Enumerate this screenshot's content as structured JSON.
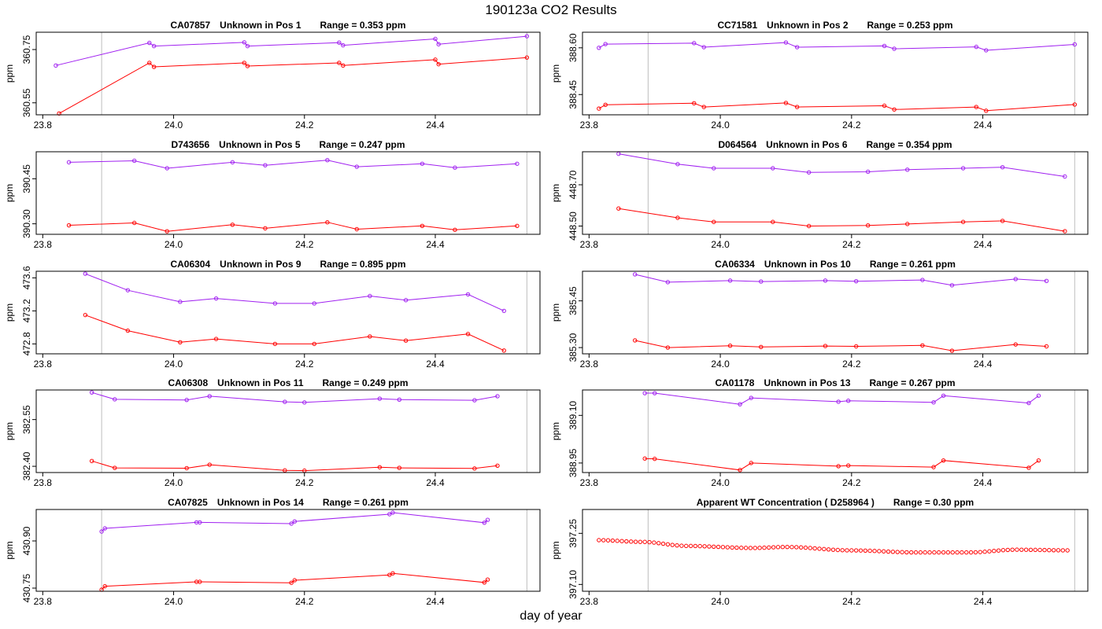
{
  "page_title": "190123a  CO2 Results",
  "xlabel": "day of year",
  "colors": {
    "purple": "#a020f0",
    "red": "#ff0000",
    "grid": "#bebebe",
    "axis": "#000000"
  },
  "chart_data": [
    {
      "type": "line",
      "id": "CA07857",
      "position": "Unknown in Pos 1",
      "range_text": "Range =  0.353 ppm",
      "ylabel": "ppm",
      "xlim": [
        23.79,
        24.56
      ],
      "ylim": [
        360.505,
        360.815
      ],
      "xticks": [
        "23.8",
        "24.0",
        "24.2",
        "24.4"
      ],
      "yticks": [
        "360.55",
        "360.75"
      ],
      "vlines": [
        23.89,
        24.54
      ],
      "series": [
        {
          "name": "upper",
          "color": "#a020f0",
          "x": [
            23.82,
            23.963,
            23.97,
            24.108,
            24.113,
            24.253,
            24.259,
            24.4,
            24.405,
            24.54
          ],
          "y": [
            360.69,
            360.775,
            360.763,
            360.777,
            360.763,
            360.776,
            360.766,
            360.79,
            360.77,
            360.8
          ]
        },
        {
          "name": "lower",
          "color": "#ff0000",
          "x": [
            23.825,
            23.963,
            23.97,
            24.108,
            24.113,
            24.253,
            24.259,
            24.4,
            24.405,
            24.54
          ],
          "y": [
            360.51,
            360.7,
            360.685,
            360.7,
            360.688,
            360.7,
            360.69,
            360.712,
            360.695,
            360.72
          ]
        }
      ]
    },
    {
      "type": "line",
      "id": "CC71581",
      "position": "Unknown in Pos 2",
      "range_text": "Range =  0.253 ppm",
      "ylabel": "ppm",
      "xlim": [
        23.79,
        24.56
      ],
      "ylim": [
        388.385,
        388.65
      ],
      "xticks": [
        "23.8",
        "24.0",
        "24.2",
        "24.4"
      ],
      "yticks": [
        "388.45",
        "388.60"
      ],
      "vlines": [
        23.89,
        24.54
      ],
      "series": [
        {
          "name": "upper",
          "color": "#a020f0",
          "x": [
            23.815,
            23.825,
            23.96,
            23.975,
            24.1,
            24.117,
            24.25,
            24.265,
            24.39,
            24.405,
            24.54
          ],
          "y": [
            388.6,
            388.612,
            388.615,
            388.602,
            388.617,
            388.602,
            388.606,
            388.597,
            388.603,
            388.592,
            388.611
          ]
        },
        {
          "name": "lower",
          "color": "#ff0000",
          "x": [
            23.815,
            23.825,
            23.96,
            23.975,
            24.1,
            24.117,
            24.25,
            24.265,
            24.39,
            24.405,
            24.54
          ],
          "y": [
            388.405,
            388.417,
            388.422,
            388.41,
            388.423,
            388.41,
            388.414,
            388.402,
            388.41,
            388.398,
            388.418
          ]
        }
      ]
    },
    {
      "type": "line",
      "id": "D743656",
      "position": "Unknown in Pos 5",
      "range_text": "Range =  0.247 ppm",
      "ylabel": "ppm",
      "xlim": [
        23.79,
        24.56
      ],
      "ylim": [
        390.265,
        390.54
      ],
      "xticks": [
        "23.8",
        "24.0",
        "24.2",
        "24.4"
      ],
      "yticks": [
        "390.30",
        "390.45"
      ],
      "vlines": [
        23.89,
        24.54
      ],
      "series": [
        {
          "name": "upper",
          "color": "#a020f0",
          "x": [
            23.84,
            23.94,
            23.99,
            24.09,
            24.14,
            24.235,
            24.28,
            24.38,
            24.43,
            24.525
          ],
          "y": [
            390.505,
            390.51,
            390.485,
            390.505,
            390.495,
            390.512,
            390.49,
            390.5,
            390.487,
            390.5
          ]
        },
        {
          "name": "lower",
          "color": "#ff0000",
          "x": [
            23.84,
            23.94,
            23.99,
            24.09,
            24.14,
            24.235,
            24.28,
            24.38,
            24.43,
            24.525
          ],
          "y": [
            390.295,
            390.303,
            390.275,
            390.297,
            390.285,
            390.305,
            390.282,
            390.293,
            390.28,
            390.293
          ]
        }
      ]
    },
    {
      "type": "line",
      "id": "D064564",
      "position": "Unknown in Pos 6",
      "range_text": "Range =  0.354 ppm",
      "ylabel": "ppm",
      "xlim": [
        23.79,
        24.56
      ],
      "ylim": [
        448.46,
        448.86
      ],
      "xticks": [
        "23.8",
        "24.0",
        "24.2",
        "24.4"
      ],
      "yticks": [
        "448.50",
        "448.70"
      ],
      "vlines": [
        23.89,
        24.54
      ],
      "series": [
        {
          "name": "upper",
          "color": "#a020f0",
          "x": [
            23.845,
            23.935,
            23.99,
            24.08,
            24.135,
            24.225,
            24.285,
            24.37,
            24.43,
            24.525
          ],
          "y": [
            448.85,
            448.8,
            448.78,
            448.78,
            448.76,
            448.763,
            448.773,
            448.78,
            448.785,
            448.74
          ]
        },
        {
          "name": "lower",
          "color": "#ff0000",
          "x": [
            23.845,
            23.935,
            23.99,
            24.08,
            24.135,
            24.225,
            24.285,
            24.37,
            24.43,
            24.525
          ],
          "y": [
            448.585,
            448.54,
            448.52,
            448.52,
            448.5,
            448.503,
            448.51,
            448.52,
            448.525,
            448.475
          ]
        }
      ]
    },
    {
      "type": "line",
      "id": "CA06304",
      "position": "Unknown in Pos 9",
      "range_text": "Range =  0.895 ppm",
      "ylabel": "ppm",
      "xlim": [
        23.79,
        24.56
      ],
      "ylim": [
        472.68,
        473.68
      ],
      "xticks": [
        "23.8",
        "24.0",
        "24.2",
        "24.4"
      ],
      "yticks": [
        "472.8",
        "473.2",
        "473.6"
      ],
      "vlines": [
        23.89,
        24.54
      ],
      "series": [
        {
          "name": "upper",
          "color": "#a020f0",
          "x": [
            23.865,
            23.93,
            24.01,
            24.065,
            24.155,
            24.215,
            24.3,
            24.355,
            24.45,
            24.505
          ],
          "y": [
            473.65,
            473.45,
            473.31,
            473.35,
            473.29,
            473.29,
            473.38,
            473.33,
            473.4,
            473.2
          ]
        },
        {
          "name": "lower",
          "color": "#ff0000",
          "x": [
            23.865,
            23.93,
            24.01,
            24.065,
            24.155,
            24.215,
            24.3,
            24.355,
            24.45,
            24.505
          ],
          "y": [
            473.15,
            472.96,
            472.82,
            472.86,
            472.8,
            472.8,
            472.89,
            472.84,
            472.92,
            472.72
          ]
        }
      ]
    },
    {
      "type": "line",
      "id": "CA06334",
      "position": "Unknown in Pos 10",
      "range_text": "Range =  0.261 ppm",
      "ylabel": "ppm",
      "xlim": [
        23.79,
        24.56
      ],
      "ylim": [
        385.28,
        385.545
      ],
      "xticks": [
        "23.8",
        "24.0",
        "24.2",
        "24.4"
      ],
      "yticks": [
        "385.30",
        "385.45"
      ],
      "vlines": [
        23.89,
        24.54
      ],
      "series": [
        {
          "name": "upper",
          "color": "#a020f0",
          "x": [
            23.87,
            23.92,
            24.015,
            24.062,
            24.16,
            24.207,
            24.308,
            24.353,
            24.45,
            24.497
          ],
          "y": [
            385.535,
            385.51,
            385.515,
            385.512,
            385.515,
            385.513,
            385.517,
            385.5,
            385.52,
            385.514
          ]
        },
        {
          "name": "lower",
          "color": "#ff0000",
          "x": [
            23.87,
            23.92,
            24.015,
            24.062,
            24.16,
            24.207,
            24.308,
            24.353,
            24.45,
            24.497
          ],
          "y": [
            385.323,
            385.3,
            385.306,
            385.302,
            385.305,
            385.304,
            385.307,
            385.29,
            385.31,
            385.304
          ]
        }
      ]
    },
    {
      "type": "line",
      "id": "CA06308",
      "position": "Unknown in Pos 11",
      "range_text": "Range =  0.249 ppm",
      "ylabel": "ppm",
      "xlim": [
        23.79,
        24.56
      ],
      "ylim": [
        382.38,
        382.645
      ],
      "xticks": [
        "23.8",
        "24.0",
        "24.2",
        "24.4"
      ],
      "yticks": [
        "382.40",
        "382.55"
      ],
      "vlines": [
        23.89,
        24.54
      ],
      "series": [
        {
          "name": "upper",
          "color": "#a020f0",
          "x": [
            23.875,
            23.91,
            24.02,
            24.055,
            24.17,
            24.2,
            24.315,
            24.345,
            24.46,
            24.495
          ],
          "y": [
            382.637,
            382.615,
            382.613,
            382.625,
            382.607,
            382.605,
            382.617,
            382.614,
            382.612,
            382.625
          ]
        },
        {
          "name": "lower",
          "color": "#ff0000",
          "x": [
            23.875,
            23.91,
            24.02,
            24.055,
            24.17,
            24.2,
            24.315,
            24.345,
            24.46,
            24.495
          ],
          "y": [
            382.417,
            382.395,
            382.394,
            382.405,
            382.387,
            382.386,
            382.397,
            382.395,
            382.393,
            382.402
          ]
        }
      ]
    },
    {
      "type": "line",
      "id": "CA01178",
      "position": "Unknown in Pos 13",
      "range_text": "Range =  0.267 ppm",
      "ylabel": "ppm",
      "xlim": [
        23.79,
        24.56
      ],
      "ylim": [
        388.92,
        389.18
      ],
      "xticks": [
        "23.8",
        "24.0",
        "24.2",
        "24.4"
      ],
      "yticks": [
        "388.95",
        "389.10"
      ],
      "vlines": [
        23.89,
        24.54
      ],
      "series": [
        {
          "name": "upper",
          "color": "#a020f0",
          "x": [
            23.885,
            23.9,
            24.03,
            24.047,
            24.18,
            24.195,
            24.325,
            24.34,
            24.47,
            24.485
          ],
          "y": [
            389.17,
            389.17,
            389.135,
            389.155,
            389.143,
            389.146,
            389.141,
            389.162,
            389.139,
            389.162
          ]
        },
        {
          "name": "lower",
          "color": "#ff0000",
          "x": [
            23.885,
            23.9,
            24.03,
            24.047,
            24.18,
            24.195,
            24.325,
            24.34,
            24.47,
            24.485
          ],
          "y": [
            388.964,
            388.963,
            388.928,
            388.95,
            388.94,
            388.942,
            388.937,
            388.958,
            388.935,
            388.958
          ]
        }
      ]
    },
    {
      "type": "line",
      "id": "CA07825",
      "position": "Unknown in Pos 14",
      "range_text": "Range =  0.261 ppm",
      "ylabel": "ppm",
      "xlim": [
        23.79,
        24.56
      ],
      "ylim": [
        430.74,
        431.0
      ],
      "xticks": [
        "23.8",
        "24.0",
        "24.2",
        "24.4"
      ],
      "yticks": [
        "430.75",
        "430.90"
      ],
      "vlines": [
        23.89,
        24.54
      ],
      "series": [
        {
          "name": "upper",
          "color": "#a020f0",
          "x": [
            23.89,
            23.895,
            24.035,
            24.04,
            24.18,
            24.185,
            24.33,
            24.335,
            24.475,
            24.48
          ],
          "y": [
            430.93,
            430.94,
            430.959,
            430.959,
            430.955,
            430.962,
            430.985,
            430.99,
            430.958,
            430.967
          ]
        },
        {
          "name": "lower",
          "color": "#ff0000",
          "x": [
            23.89,
            23.895,
            24.035,
            24.04,
            24.18,
            24.185,
            24.33,
            24.335,
            24.475,
            24.48
          ],
          "y": [
            430.745,
            430.756,
            430.77,
            430.77,
            430.767,
            430.775,
            430.792,
            430.797,
            430.768,
            430.777
          ]
        }
      ]
    },
    {
      "type": "scatter",
      "id": "Apparent WT Concentration ( D258964 )",
      "position": "",
      "range_text": "Range = 0.30 ppm",
      "ylabel": "ppm",
      "xlim": [
        23.79,
        24.56
      ],
      "ylim": [
        397.08,
        397.32
      ],
      "xticks": [
        "23.8",
        "24.0",
        "24.2",
        "24.4"
      ],
      "yticks": [
        "397.10",
        "397.25"
      ],
      "vlines": [
        23.89,
        24.54
      ],
      "curve": {
        "color": "#ff0000",
        "x_start": 23.815,
        "x_end": 24.535,
        "step": 0.007,
        "knots_x": [
          23.815,
          23.88,
          23.95,
          24.05,
          24.1,
          24.2,
          24.3,
          24.38,
          24.45,
          24.535
        ],
        "knots_y": [
          397.23,
          397.225,
          397.213,
          397.207,
          397.21,
          397.2,
          397.194,
          397.194,
          397.202,
          397.2
        ]
      }
    }
  ]
}
